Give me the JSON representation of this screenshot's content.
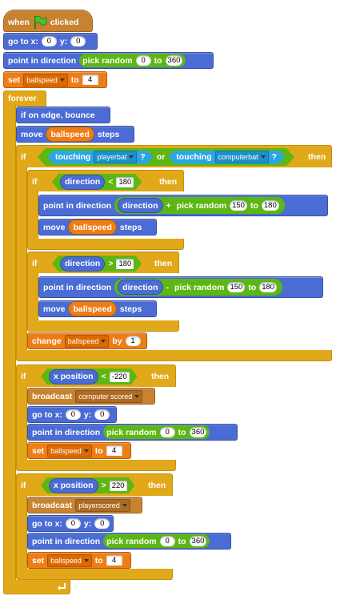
{
  "hat": {
    "when": "when",
    "clicked": "clicked"
  },
  "goto1": {
    "label": "go to x:",
    "x": "0",
    "ylabel": "y:",
    "y": "0"
  },
  "point1": {
    "label": "point in direction",
    "rand": "pick random",
    "from": "0",
    "to_label": "to",
    "to": "360"
  },
  "set1": {
    "label": "set",
    "var": "ballspeed",
    "to_label": "to",
    "value": "4"
  },
  "forever": {
    "label": "forever"
  },
  "bounce": {
    "label": "if on edge, bounce"
  },
  "move1": {
    "label": "move",
    "var": "ballspeed",
    "steps": "steps"
  },
  "if1": {
    "if": "if",
    "touching": "touching",
    "sprite1": "playerbat",
    "q": "?",
    "or": "or",
    "sprite2": "computerbat",
    "then": "then"
  },
  "if2": {
    "if": "if",
    "var": "direction",
    "op": "<",
    "value": "180",
    "then": "then"
  },
  "point2": {
    "label": "point in direction",
    "var": "direction",
    "op": "+",
    "rand": "pick random",
    "from": "150",
    "to_label": "to",
    "to": "180"
  },
  "move2": {
    "label": "move",
    "var": "ballspeed",
    "steps": "steps"
  },
  "if3": {
    "if": "if",
    "var": "direction",
    "op": ">",
    "value": "180",
    "then": "then"
  },
  "point3": {
    "label": "point in direction",
    "var": "direction",
    "op": "-",
    "rand": "pick random",
    "from": "150",
    "to_label": "to",
    "to": "180"
  },
  "move3": {
    "label": "move",
    "var": "ballspeed",
    "steps": "steps"
  },
  "change1": {
    "label": "change",
    "var": "ballspeed",
    "by": "by",
    "value": "1"
  },
  "if4": {
    "if": "if",
    "var": "x position",
    "op": "<",
    "value": "-220",
    "then": "then"
  },
  "bc1": {
    "label": "broadcast",
    "msg": "computer scored"
  },
  "goto2": {
    "label": "go to x:",
    "x": "0",
    "ylabel": "y:",
    "y": "0"
  },
  "point4": {
    "label": "point in direction",
    "rand": "pick random",
    "from": "0",
    "to_label": "to",
    "to": "360"
  },
  "set2": {
    "label": "set",
    "var": "ballspeed",
    "to_label": "to",
    "value": "4"
  },
  "if5": {
    "if": "if",
    "var": "x position",
    "op": ">",
    "value": "220",
    "then": "then"
  },
  "bc2": {
    "label": "broadcast",
    "msg": "playerscored"
  },
  "goto3": {
    "label": "go to x:",
    "x": "0",
    "ylabel": "y:",
    "y": "0"
  },
  "point5": {
    "label": "point in direction",
    "rand": "pick random",
    "from": "0",
    "to_label": "to",
    "to": "360"
  },
  "set3": {
    "label": "set",
    "var": "ballspeed",
    "to_label": "to",
    "value": "4"
  },
  "icons": {
    "flag": "green-flag-icon",
    "loop": "loop-arrow-icon"
  },
  "colors": {
    "control": "#e1a91a",
    "motion": "#4a6cd4",
    "data": "#ee7d16",
    "events": "#c88330",
    "sensing": "#2ca5e2",
    "operators": "#5cb712"
  }
}
